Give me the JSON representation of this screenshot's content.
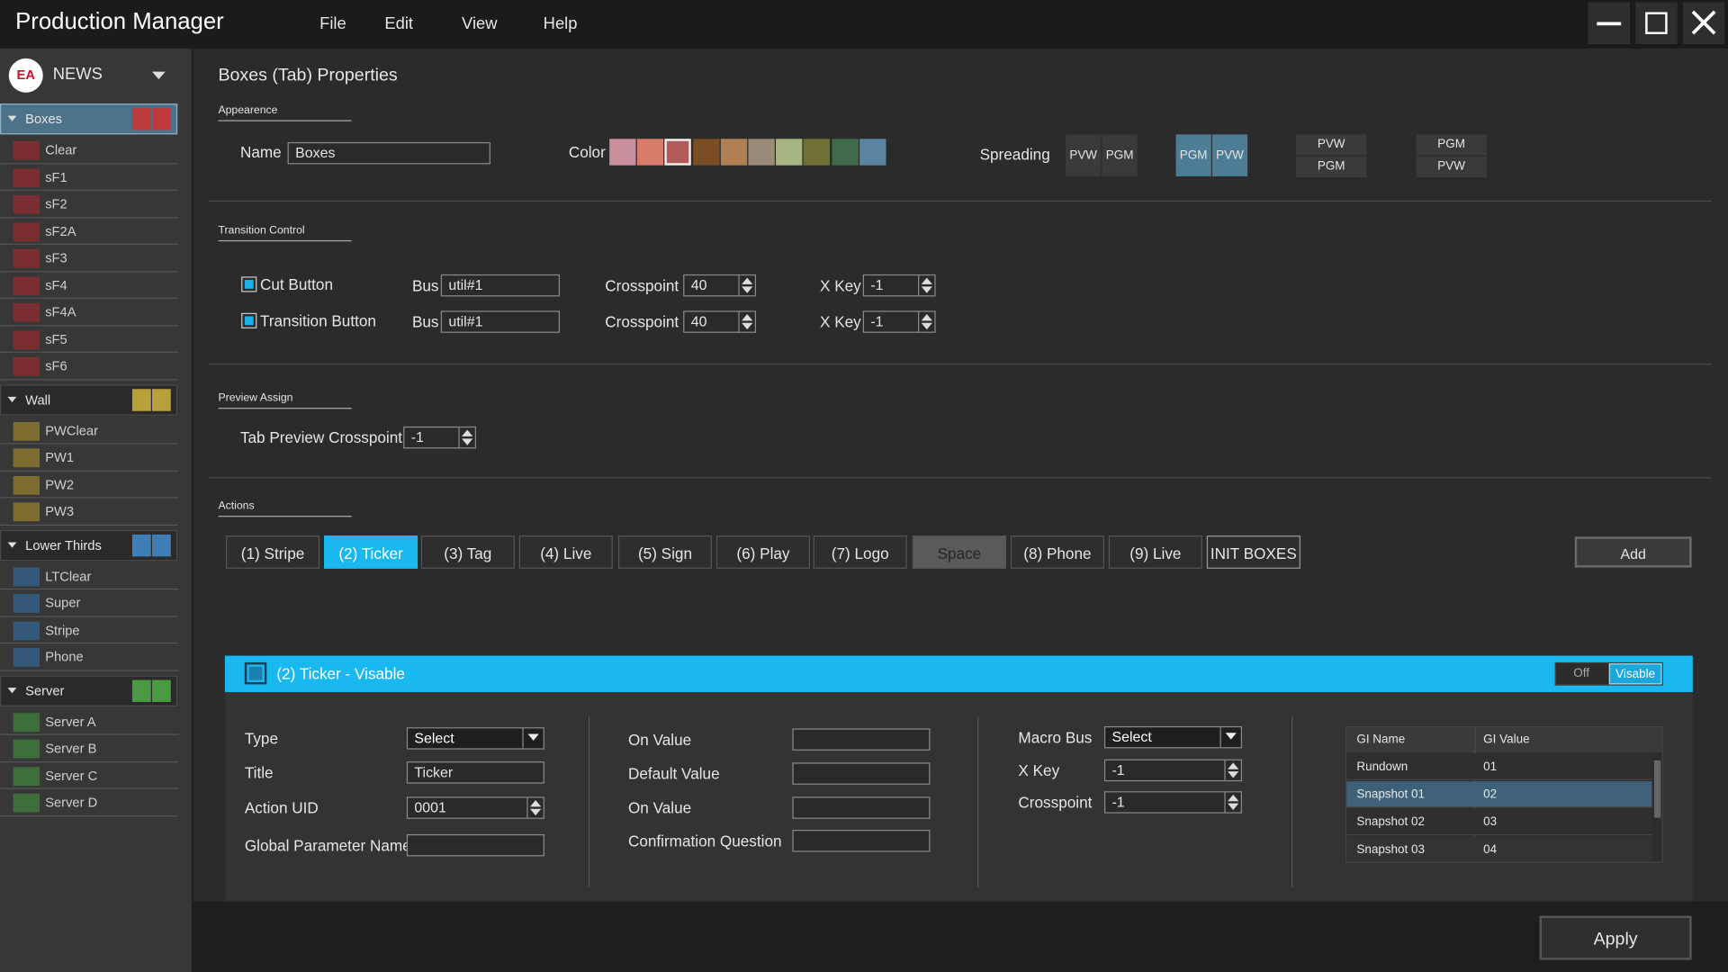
{
  "app": {
    "title": "Production Manager",
    "menu": [
      "File",
      "Edit",
      "View",
      "Help"
    ]
  },
  "sidebar": {
    "logo": "EA",
    "channel": "NEWS",
    "groups": [
      {
        "name": "Boxes",
        "items": [
          "Clear",
          "sF1",
          "sF2",
          "sF2A",
          "sF3",
          "sF4",
          "sF4A",
          "sF5",
          "sF6"
        ]
      },
      {
        "name": "Wall",
        "items": [
          "PWClear",
          "PW1",
          "PW2",
          "PW3"
        ]
      },
      {
        "name": "Lower Thirds",
        "items": [
          "LTClear",
          "Super",
          "Stripe",
          "Phone"
        ]
      },
      {
        "name": "Server",
        "items": [
          "Server A",
          "Server B",
          "Server C",
          "Server D"
        ]
      }
    ]
  },
  "panel": {
    "title": "Boxes (Tab) Properties",
    "appearance": {
      "heading": "Appearence",
      "name_label": "Name",
      "name_value": "Boxes",
      "color_label": "Color",
      "spreading_label": "Spreading",
      "spreading": [
        [
          "PVW",
          "PGM"
        ],
        [
          "PGM",
          "PVW"
        ],
        [
          "PVW",
          "PGM"
        ],
        [
          "PGM",
          "PVW"
        ]
      ]
    },
    "transition": {
      "heading": "Transition Control",
      "rows": [
        {
          "label": "Cut Button",
          "bus_label": "Bus",
          "bus": "util#1",
          "crosspoint_label": "Crosspoint",
          "crosspoint": "40",
          "xkey_label": "X Key",
          "xkey": "-1"
        },
        {
          "label": "Transition Button",
          "bus_label": "Bus",
          "bus": "util#1",
          "crosspoint_label": "Crosspoint",
          "crosspoint": "40",
          "xkey_label": "X Key",
          "xkey": "-1"
        }
      ]
    },
    "preview": {
      "heading": "Preview Assign",
      "label": "Tab Preview Crosspoint",
      "value": "-1"
    },
    "actions": {
      "heading": "Actions",
      "buttons": [
        "(1) Stripe",
        "(2) Ticker",
        "(3) Tag",
        "(4) Live",
        "(5) Sign",
        "(6) Play",
        "(7) Logo",
        "Space",
        "(8) Phone",
        "(9) Live",
        "INIT BOXES"
      ],
      "add": "Add"
    },
    "detail": {
      "title": "(2) Ticker - Visable",
      "toggle": [
        "Off",
        "Visable"
      ],
      "col1": [
        {
          "label": "Type",
          "value": "Select"
        },
        {
          "label": "Title",
          "value": "Ticker"
        },
        {
          "label": "Action UID",
          "value": "0001"
        },
        {
          "label": "Global Parameter Name"
        }
      ],
      "col2": [
        {
          "label": "On Value"
        },
        {
          "label": "Default Value"
        },
        {
          "label": "On Value"
        },
        {
          "label": "Confirmation Question"
        }
      ],
      "col3": [
        {
          "label": "Macro Bus",
          "value": "Select"
        },
        {
          "label": "X Key",
          "value": "-1"
        },
        {
          "label": "Crosspoint",
          "value": "-1"
        }
      ],
      "table": {
        "columns": [
          "GI Name",
          "GI Value"
        ],
        "rows": [
          [
            "Rundown",
            "01"
          ],
          [
            "Snapshot 01",
            "02"
          ],
          [
            "Snapshot 02",
            "03"
          ],
          [
            "Snapshot 03",
            "04"
          ]
        ]
      }
    },
    "apply": "Apply"
  }
}
